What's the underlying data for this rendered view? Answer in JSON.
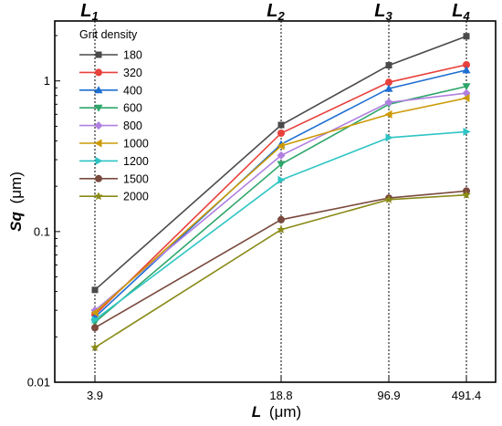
{
  "chart_data": {
    "type": "line",
    "title": "",
    "xlabel": {
      "symbol": "L",
      "unit": "(μm)"
    },
    "ylabel": {
      "symbol": "Sq",
      "unit": "(μm)"
    },
    "x_scale": "categorical",
    "y_scale": "log",
    "ylim": [
      0.01,
      2.5
    ],
    "grid": false,
    "legend_position": "top-left",
    "legend_title": "Grit density",
    "categories": [
      "3.9",
      "18.8",
      "96.9",
      "491.4"
    ],
    "y_ticks": [
      {
        "value": 0.01,
        "label": "0.01"
      },
      {
        "value": 0.1,
        "label": "0.1"
      },
      {
        "value": 1,
        "label": "1"
      }
    ],
    "top_labels": [
      {
        "main": "L",
        "sub": "1",
        "category": "3.9"
      },
      {
        "main": "L",
        "sub": "2",
        "category": "18.8"
      },
      {
        "main": "L",
        "sub": "3",
        "category": "96.9"
      },
      {
        "main": "L",
        "sub": "4",
        "category": "491.4"
      }
    ],
    "series": [
      {
        "name": "180",
        "color": "#4a4a4a",
        "marker": "square",
        "values": [
          0.041,
          0.51,
          1.27,
          1.98
        ]
      },
      {
        "name": "320",
        "color": "#e8413c",
        "marker": "circle",
        "values": [
          0.028,
          0.45,
          0.98,
          1.28
        ]
      },
      {
        "name": "400",
        "color": "#1f6fd1",
        "marker": "triangle-up",
        "values": [
          0.027,
          0.38,
          0.89,
          1.18
        ]
      },
      {
        "name": "600",
        "color": "#2ea66a",
        "marker": "triangle-down",
        "values": [
          0.025,
          0.28,
          0.7,
          0.92
        ]
      },
      {
        "name": "800",
        "color": "#b07fe0",
        "marker": "diamond",
        "values": [
          0.03,
          0.32,
          0.72,
          0.83
        ]
      },
      {
        "name": "1000",
        "color": "#cc9a06",
        "marker": "triangle-left",
        "values": [
          0.029,
          0.37,
          0.6,
          0.77
        ]
      },
      {
        "name": "1200",
        "color": "#2ec4c4",
        "marker": "triangle-right",
        "values": [
          0.026,
          0.22,
          0.42,
          0.46
        ]
      },
      {
        "name": "1500",
        "color": "#7a4a3e",
        "marker": "circle",
        "values": [
          0.023,
          0.12,
          0.167,
          0.186
        ]
      },
      {
        "name": "2000",
        "color": "#8a8a18",
        "marker": "star",
        "values": [
          0.017,
          0.103,
          0.163,
          0.175
        ]
      }
    ]
  }
}
